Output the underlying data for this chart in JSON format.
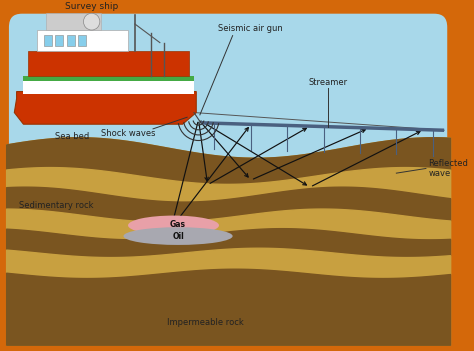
{
  "bg_color": "#87CEEB",
  "border_color": "#D4680A",
  "water_color": "#A8D8EA",
  "seabed_brown": "#8B6220",
  "seabed_tan": "#C8A040",
  "sediment_dark": "#7A5520",
  "sediment_tan": "#D4A830",
  "gas_color": "#E8A0A8",
  "oil_color": "#A8A8B0",
  "text_color": "#222222",
  "streamer_color": "#4A6080",
  "ray_color": "#111111",
  "shock_arc_color": "#333333",
  "labels": {
    "survey_ship": "Survey ship",
    "seismic_air_gun": "Seismic air gun",
    "streamer": "Streamer",
    "shock_waves": "Shock waves",
    "sea_bed": "Sea bed",
    "sedimentary_rock": "Sedimentary rock",
    "gas": "Gas",
    "oil": "Oil",
    "impermeable_rock": "Impermeable rock",
    "reflected_wave": "Reflected\nwave"
  }
}
